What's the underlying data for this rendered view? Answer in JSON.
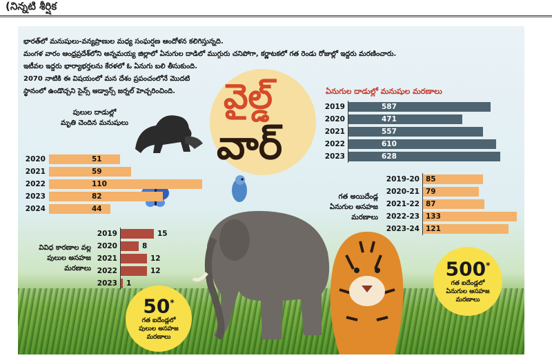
{
  "header": {
    "left_text": "(నిన్నటి శీర్షిక",
    "mid_text": "",
    "right_text": ""
  },
  "intro_lines": [
    "భారత్‌లో మనుషులు-వన్యప్రాణుల మధ్య సంఘర్షణ ఆందోళన కలిగిస్తున్నది.",
    "మంగళ వారం ఆంధ్రప్రదేశ్‌లోని అన్నమయ్య జిల్లాలో ఏనుగుల దాడిలో ముగ్గురు చనిపోగా, కర్ణాటకలో గత రెండు రోజుల్లో ఇద్దరు మరణించారు.",
    "ఇటీవల ఇద్దరు భార్యాభర్తలను కేరళలో ఓ ఏనుగు బలి తీసుకుంది.",
    "2070 నాటికి ఈ విషయంలో మన దేశం ప్రపంచంలోనే మొదటి",
    "స్థానంలో ఉండొచ్చని సైన్స్ అడ్వాన్స్ జర్నల్ హెచ్చరించింది."
  ],
  "headline": {
    "line1": "వైల్డ్",
    "line2": "వార్"
  },
  "colors": {
    "orange": "#f4b26b",
    "slate": "#4e6470",
    "brick": "#b04a3c",
    "gold": "#f7e04a"
  },
  "chart_data": [
    {
      "type": "bar",
      "title": "పులుల దాడుల్లో మృతి చెందిన మనుషులు",
      "title_lines": [
        "పులుల దాడుల్లో",
        "మృతి చెందిన మనుషులు"
      ],
      "categories": [
        "2020",
        "2021",
        "2022",
        "2023",
        "2024"
      ],
      "values": [
        51,
        59,
        110,
        82,
        44
      ],
      "value_labels": [
        "51",
        "59",
        "110",
        "82",
        "44"
      ]
    },
    {
      "type": "bar",
      "title": "ఏనుగుల దాడుల్లో మనుషుల మరణాలు",
      "categories": [
        "2019",
        "2020",
        "2021",
        "2022",
        "2023"
      ],
      "values": [
        587,
        471,
        557,
        610,
        628
      ],
      "value_labels": [
        "587",
        "471",
        "557",
        "610",
        "628"
      ]
    },
    {
      "type": "bar",
      "title": "గత అయిదేండ్ల ఏనుగుల అసహజ మరణాలు",
      "title_lines": [
        "గత అయిదేండ్ల",
        "ఏనుగుల అసహజ",
        "మరణాలు"
      ],
      "categories": [
        "2019-20",
        "2020-21",
        "2021-22",
        "2022-23",
        "2023-24"
      ],
      "values": [
        85,
        79,
        87,
        133,
        121
      ],
      "value_labels": [
        "85",
        "79",
        "87",
        "133",
        "121"
      ]
    },
    {
      "type": "bar",
      "title": "వివిధ కారణాల వల్ల పులుల అసహజ మరణాలు",
      "title_lines": [
        "వివిధ కారణాల వల్ల",
        "పులుల అసహజ",
        "మరణాలు"
      ],
      "categories": [
        "2019",
        "2020",
        "2021",
        "2022",
        "2023"
      ],
      "values": [
        15,
        8,
        12,
        12,
        1
      ],
      "value_labels": [
        "15",
        "8",
        "12",
        "12",
        "1"
      ]
    }
  ],
  "bubbles": [
    {
      "number": "50",
      "star": "*",
      "lines": [
        "గత ఐదేండ్లలో",
        "పులుల అసహజ",
        "మరణాలు"
      ]
    },
    {
      "number": "500",
      "star": "*",
      "lines": [
        "గత ఐదేండ్లలో",
        "ఏనుగుల అసహజ",
        "మరణాలు"
      ]
    }
  ],
  "icons": [
    "lion-attack-icon",
    "elephant-icon",
    "tiger-icon",
    "bird-icon",
    "butterfly-icon"
  ]
}
